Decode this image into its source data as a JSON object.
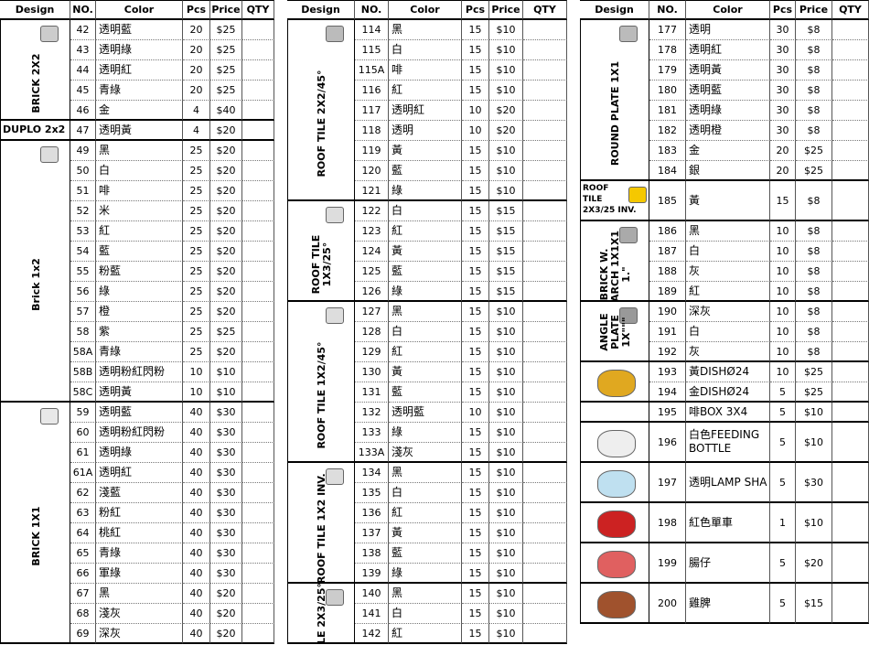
{
  "panels": [
    {
      "headers": [
        "Design",
        "NO.",
        "Color",
        "Pcs",
        "Price",
        "QTY"
      ],
      "groups": [
        {
          "design": [
            "BRICK 2X2"
          ],
          "rows": [
            [
              "42",
              "透明藍",
              20,
              "$25"
            ],
            [
              "43",
              "透明綠",
              20,
              "$25"
            ],
            [
              "44",
              "透明紅",
              20,
              "$25"
            ],
            [
              "45",
              "青綠",
              20,
              "$25"
            ],
            [
              "46",
              "金",
              4,
              "$40"
            ]
          ]
        },
        {
          "design": [
            "DUPLO 2x2"
          ],
          "rows": [
            [
              "47",
              "透明黃",
              4,
              "$20"
            ]
          ]
        },
        {
          "design": [
            "Brick 1x2"
          ],
          "rows": [
            [
              "49",
              "黑",
              25,
              "$20"
            ],
            [
              "50",
              "白",
              25,
              "$20"
            ],
            [
              "51",
              "啡",
              25,
              "$20"
            ],
            [
              "52",
              "米",
              25,
              "$20"
            ],
            [
              "53",
              "紅",
              25,
              "$20"
            ],
            [
              "54",
              "藍",
              25,
              "$20"
            ],
            [
              "55",
              "粉藍",
              25,
              "$20"
            ],
            [
              "56",
              "綠",
              25,
              "$20"
            ],
            [
              "57",
              "橙",
              25,
              "$20"
            ],
            [
              "58",
              "紫",
              25,
              "$25"
            ],
            [
              "58A",
              "青綠",
              25,
              "$20"
            ],
            [
              "58B",
              "透明粉紅閃粉",
              10,
              "$10"
            ],
            [
              "58C",
              "透明黃",
              10,
              "$10"
            ]
          ]
        },
        {
          "design": [
            "BRICK 1X1"
          ],
          "rows": [
            [
              "59",
              "透明藍",
              40,
              "$30"
            ],
            [
              "60",
              "透明粉紅閃粉",
              40,
              "$30"
            ],
            [
              "61",
              "透明綠",
              40,
              "$30"
            ],
            [
              "61A",
              "透明紅",
              40,
              "$30"
            ],
            [
              "62",
              "淺藍",
              40,
              "$30"
            ],
            [
              "63",
              "粉紅",
              40,
              "$30"
            ],
            [
              "64",
              "桃紅",
              40,
              "$30"
            ],
            [
              "65",
              "青綠",
              40,
              "$30"
            ],
            [
              "66",
              "軍綠",
              40,
              "$30"
            ],
            [
              "67",
              "黑",
              40,
              "$20"
            ],
            [
              "68",
              "淺灰",
              40,
              "$20"
            ],
            [
              "69",
              "深灰",
              40,
              "$20"
            ]
          ]
        }
      ]
    },
    {
      "headers": [
        "Design",
        "NO.",
        "Color",
        "Pcs",
        "Price",
        "QTY"
      ],
      "groups": [
        {
          "design": [
            "ROOF TILE 2X2/45°"
          ],
          "rows": [
            [
              "114",
              "黑",
              15,
              "$10"
            ],
            [
              "115",
              "白",
              15,
              "$10"
            ],
            [
              "115A",
              "啡",
              15,
              "$10"
            ],
            [
              "116",
              "紅",
              15,
              "$10"
            ],
            [
              "117",
              "透明紅",
              10,
              "$20"
            ],
            [
              "118",
              "透明",
              10,
              "$20"
            ],
            [
              "119",
              "黃",
              15,
              "$10"
            ],
            [
              "120",
              "藍",
              15,
              "$10"
            ],
            [
              "121",
              "綠",
              15,
              "$10"
            ]
          ]
        },
        {
          "design": [
            "ROOF TILE",
            "1X3/25°"
          ],
          "rows": [
            [
              "122",
              "白",
              15,
              "$15"
            ],
            [
              "123",
              "紅",
              15,
              "$15"
            ],
            [
              "124",
              "黃",
              15,
              "$15"
            ],
            [
              "125",
              "藍",
              15,
              "$15"
            ],
            [
              "126",
              "綠",
              15,
              "$15"
            ]
          ]
        },
        {
          "design": [
            "ROOF TILE 1X2/45°"
          ],
          "rows": [
            [
              "127",
              "黑",
              15,
              "$10"
            ],
            [
              "128",
              "白",
              15,
              "$10"
            ],
            [
              "129",
              "紅",
              15,
              "$10"
            ],
            [
              "130",
              "黃",
              15,
              "$10"
            ],
            [
              "131",
              "藍",
              15,
              "$10"
            ],
            [
              "132",
              "透明藍",
              10,
              "$10"
            ],
            [
              "133",
              "綠",
              15,
              "$10"
            ],
            [
              "133A",
              "淺灰",
              15,
              "$10"
            ]
          ]
        },
        {
          "design": [
            "ROOF TILE 1X2 INV."
          ],
          "rows": [
            [
              "134",
              "黑",
              15,
              "$10"
            ],
            [
              "135",
              "白",
              15,
              "$10"
            ],
            [
              "136",
              "紅",
              15,
              "$10"
            ],
            [
              "137",
              "黃",
              15,
              "$10"
            ],
            [
              "138",
              "藍",
              15,
              "$10"
            ],
            [
              "139",
              "綠",
              15,
              "$10"
            ]
          ]
        },
        {
          "design": [
            "LE 2X3/25°"
          ],
          "rows": [
            [
              "140",
              "黑",
              15,
              "$10"
            ],
            [
              "141",
              "白",
              15,
              "$10"
            ],
            [
              "142",
              "紅",
              15,
              "$10"
            ]
          ]
        }
      ]
    },
    {
      "headers": [
        "Design",
        "NO.",
        "Color",
        "Pcs",
        "Price",
        "QTY"
      ],
      "groups": [
        {
          "design": [
            "ROUND PLATE 1X1"
          ],
          "rows": [
            [
              "177",
              "透明",
              30,
              "$8"
            ],
            [
              "178",
              "透明紅",
              30,
              "$8"
            ],
            [
              "179",
              "透明黃",
              30,
              "$8"
            ],
            [
              "180",
              "透明藍",
              30,
              "$8"
            ],
            [
              "181",
              "透明綠",
              30,
              "$8"
            ],
            [
              "182",
              "透明橙",
              30,
              "$8"
            ],
            [
              "183",
              "金",
              20,
              "$25"
            ],
            [
              "184",
              "銀",
              20,
              "$25"
            ]
          ]
        },
        {
          "design": [
            "ROOF",
            "TILE",
            "2X3/25 INV."
          ],
          "rows": [
            [
              "185",
              "黃",
              15,
              "$8"
            ]
          ]
        },
        {
          "design": [
            "BRICK W.",
            "ARCH 1X1X1",
            "1.\""
          ],
          "rows": [
            [
              "186",
              "黑",
              10,
              "$8"
            ],
            [
              "187",
              "白",
              10,
              "$8"
            ],
            [
              "188",
              "灰",
              10,
              "$8"
            ],
            [
              "189",
              "紅",
              10,
              "$8"
            ]
          ]
        },
        {
          "design": [
            "ANGLE",
            "PLATE",
            "1X\"\"\""
          ],
          "rows": [
            [
              "190",
              "深灰",
              10,
              "$8"
            ],
            [
              "191",
              "白",
              10,
              "$8"
            ],
            [
              "192",
              "灰",
              10,
              "$8"
            ]
          ]
        },
        {
          "rows": [
            [
              "193",
              "黃DISHØ24",
              10,
              "$25"
            ],
            [
              "194",
              "金DISHØ24",
              5,
              "$25"
            ]
          ]
        },
        {
          "rows": [
            [
              "195",
              "啡BOX 3X4",
              5,
              "$10"
            ]
          ]
        },
        {
          "rows": [
            [
              "196",
              "白色FEEDING BOTTLE",
              5,
              "$10"
            ]
          ]
        },
        {
          "rows": [
            [
              "197",
              "透明LAMP SHA",
              5,
              "$30"
            ]
          ]
        },
        {
          "rows": [
            [
              "198",
              "紅色單車",
              1,
              "$10"
            ]
          ]
        },
        {
          "rows": [
            [
              "199",
              "腸仔",
              5,
              "$20"
            ]
          ]
        },
        {
          "rows": [
            [
              "200",
              "雞脾",
              5,
              "$15"
            ]
          ]
        }
      ]
    }
  ]
}
